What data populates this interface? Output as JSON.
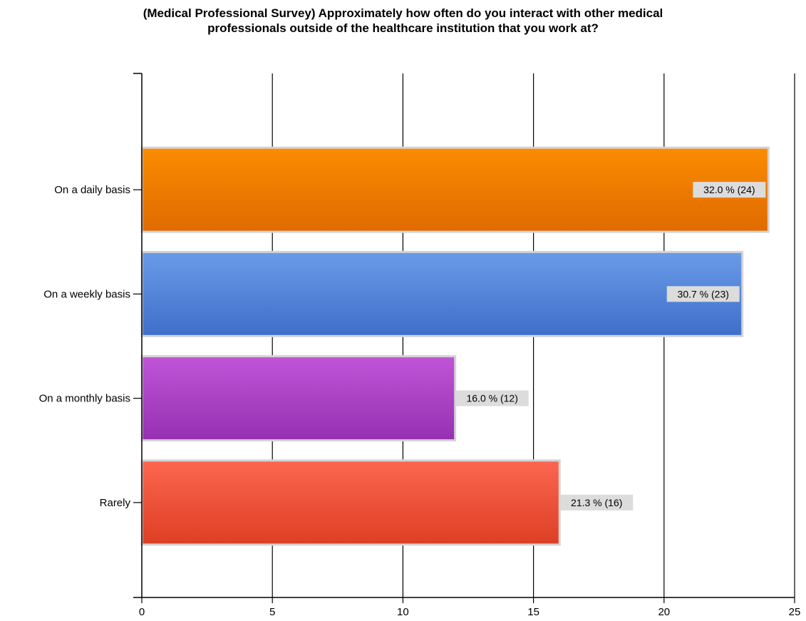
{
  "chart_data": {
    "type": "bar",
    "orientation": "horizontal",
    "title_lines": [
      "(Medical Professional Survey) Approximately how often do you interact with other medical",
      "professionals outside of the healthcare institution that you work at?"
    ],
    "categories": [
      "On a daily basis",
      "On a weekly basis",
      "On a monthly basis",
      "Rarely"
    ],
    "values": [
      24,
      23,
      12,
      16
    ],
    "data_labels": [
      "32.0 % (24)",
      "30.7 % (23)",
      "16.0 % (12)",
      "21.3 % (16)"
    ],
    "colors": [
      {
        "top": "#fb8c00",
        "bottom": "#e06a00"
      },
      {
        "top": "#6a9be8",
        "bottom": "#3e6fc9"
      },
      {
        "top": "#c055d8",
        "bottom": "#9630b2"
      },
      {
        "top": "#fc6650",
        "bottom": "#dd3f24"
      }
    ],
    "xlim": [
      0,
      25
    ],
    "xticks": [
      0,
      5,
      10,
      15,
      20,
      25
    ],
    "xtick_labels": [
      "0",
      "5",
      "10",
      "15",
      "20",
      "25"
    ],
    "grid": true,
    "legend": "none"
  }
}
